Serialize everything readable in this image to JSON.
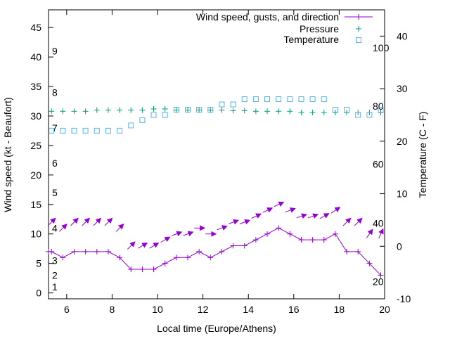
{
  "chart_data": {
    "type": "line",
    "xlabel": "Local time (Europe/Athens)",
    "ylabel_left": "Wind speed (kt - Beaufort)",
    "ylabel_right": "Temperature (C - F)",
    "xlim": [
      5.2,
      20
    ],
    "ylim_left": [
      -1,
      48
    ],
    "ylim_right": [
      -10,
      45
    ],
    "x_ticks": [
      6,
      8,
      10,
      12,
      14,
      16,
      18,
      20
    ],
    "y_left_ticks": [
      0,
      5,
      10,
      15,
      20,
      25,
      30,
      35,
      40,
      45
    ],
    "y_right_ticks": [
      -10,
      0,
      10,
      20,
      30,
      40
    ],
    "beaufort_labels": [
      {
        "label": "1",
        "value": 1
      },
      {
        "label": "2",
        "value": 3
      },
      {
        "label": "3",
        "value": 5.5
      },
      {
        "label": "4",
        "value": 11
      },
      {
        "label": "5",
        "value": 17
      },
      {
        "label": "6",
        "value": 22
      },
      {
        "label": "7",
        "value": 28
      },
      {
        "label": "8",
        "value": 34
      },
      {
        "label": "9",
        "value": 41
      }
    ],
    "fahrenheit_labels": [
      {
        "label": "20",
        "value": -6.7
      },
      {
        "label": "40",
        "value": 4.4
      },
      {
        "label": "60",
        "value": 15.6
      },
      {
        "label": "80",
        "value": 26.7
      },
      {
        "label": "100",
        "value": 37.8
      }
    ],
    "legend": {
      "placement": "top-right",
      "entries": [
        "Wind speed, gusts, and direction",
        "Pressure",
        "Temperature"
      ]
    },
    "colors": {
      "wind": "#9400d3",
      "pressure": "#009e73",
      "temperature": "#56b4e9"
    },
    "series": [
      {
        "name": "Wind speed, gusts, and direction",
        "axis": "left",
        "marker": "plus",
        "x": [
          5.2,
          5.33,
          5.83,
          6.33,
          6.83,
          7.33,
          7.83,
          8.33,
          8.83,
          9.33,
          9.83,
          10.33,
          10.83,
          11.33,
          11.83,
          12.33,
          12.83,
          13.33,
          13.83,
          14.33,
          14.83,
          15.33,
          15.83,
          16.33,
          16.83,
          17.33,
          17.83,
          18.33,
          18.83,
          19.33,
          19.83
        ],
        "values": [
          7,
          7,
          6,
          7,
          7,
          7,
          7,
          6,
          4,
          4,
          4,
          5,
          6,
          6,
          7,
          6,
          7,
          8,
          8,
          9,
          10,
          11,
          10,
          9,
          9,
          9,
          10,
          7,
          7,
          5,
          3
        ]
      },
      {
        "name": "Pressure",
        "axis": "left",
        "marker": "plus",
        "x": [
          5.33,
          5.83,
          6.33,
          6.83,
          7.33,
          7.83,
          8.33,
          8.83,
          9.33,
          9.83,
          10.33,
          10.83,
          11.33,
          11.83,
          12.33,
          12.83,
          13.33,
          13.83,
          14.33,
          14.83,
          15.33,
          15.83,
          16.33,
          16.83,
          17.33,
          17.83,
          18.33,
          18.83,
          19.33,
          19.83
        ],
        "values": [
          30.8,
          30.8,
          30.8,
          30.8,
          31,
          31,
          31,
          31,
          31,
          31.2,
          31.2,
          31,
          31,
          31,
          31,
          31,
          30.9,
          30.9,
          30.8,
          30.8,
          30.8,
          30.8,
          30.6,
          30.6,
          30.6,
          30.6,
          30.6,
          30.6,
          30.6,
          30.6
        ]
      },
      {
        "name": "Temperature",
        "axis": "right",
        "marker": "square",
        "x": [
          5.33,
          5.83,
          6.33,
          6.83,
          7.33,
          7.83,
          8.33,
          8.83,
          9.33,
          9.83,
          10.33,
          10.83,
          11.33,
          11.83,
          12.33,
          12.83,
          13.33,
          13.83,
          14.33,
          14.83,
          15.33,
          15.83,
          16.33,
          16.83,
          17.33,
          17.83,
          18.33,
          18.83,
          19.33,
          19.83
        ],
        "values": [
          22,
          22,
          22,
          22,
          22,
          22,
          22,
          23,
          24,
          25,
          25,
          26,
          26,
          26,
          26,
          27,
          27,
          28,
          28,
          28,
          28,
          28,
          28,
          28,
          28,
          26,
          26,
          25,
          25,
          26
        ]
      },
      {
        "name": "Gusts with direction",
        "axis": "left",
        "marker": "arrow",
        "x": [
          5.33,
          5.83,
          6.33,
          6.83,
          7.33,
          7.83,
          8.33,
          8.83,
          9.33,
          9.83,
          10.33,
          10.83,
          11.33,
          11.83,
          12.33,
          12.83,
          13.33,
          13.83,
          14.33,
          14.83,
          15.33,
          15.83,
          16.33,
          16.83,
          17.33,
          17.83,
          18.33,
          18.83,
          19.33,
          19.83
        ],
        "values": [
          12,
          11,
          12,
          12,
          12,
          12,
          11,
          8,
          8,
          8,
          9,
          10,
          10,
          11,
          10,
          11,
          12,
          12,
          13,
          14,
          15,
          14,
          13,
          13,
          13,
          14,
          12,
          12,
          10,
          10
        ],
        "direction_deg": [
          225,
          225,
          225,
          225,
          225,
          225,
          225,
          225,
          240,
          240,
          240,
          250,
          250,
          270,
          270,
          250,
          250,
          250,
          245,
          245,
          245,
          250,
          250,
          250,
          240,
          235,
          225,
          225,
          215,
          205
        ]
      }
    ]
  }
}
